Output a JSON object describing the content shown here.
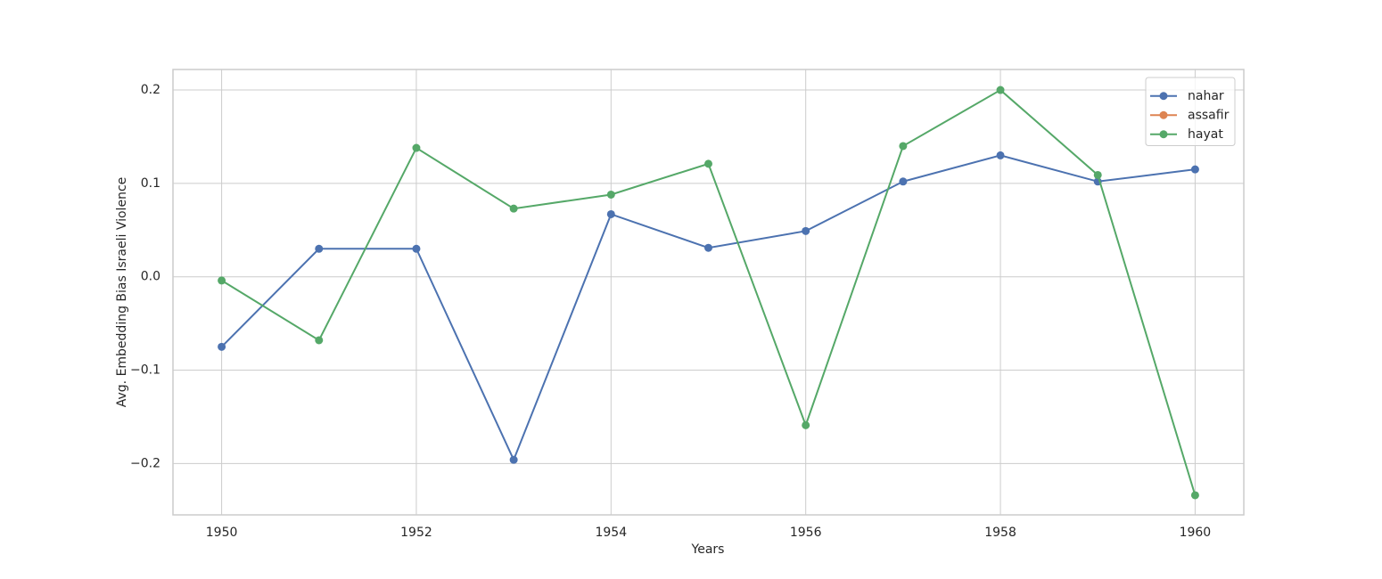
{
  "chart_data": {
    "type": "line",
    "x": [
      1950,
      1951,
      1952,
      1953,
      1954,
      1955,
      1956,
      1957,
      1958,
      1959,
      1960
    ],
    "series": [
      {
        "name": "nahar",
        "color": "#4c72b0",
        "values": [
          -0.075,
          0.03,
          0.03,
          -0.196,
          0.067,
          0.031,
          0.049,
          0.102,
          0.13,
          0.102,
          0.115
        ]
      },
      {
        "name": "assafir",
        "color": "#dd8452",
        "values": [
          null,
          null,
          null,
          null,
          null,
          null,
          null,
          null,
          null,
          null,
          null
        ]
      },
      {
        "name": "hayat",
        "color": "#55a868",
        "values": [
          -0.004,
          -0.068,
          0.138,
          0.073,
          0.088,
          0.121,
          -0.159,
          0.14,
          0.2,
          0.109,
          -0.234
        ]
      }
    ],
    "xlabel": "Years",
    "ylabel": "Avg. Embedding Bias Israeli Violence",
    "xlim": [
      1949.5,
      1960.5
    ],
    "xticks": [
      1950,
      1952,
      1954,
      1956,
      1958,
      1960
    ],
    "ylim": [
      -0.255,
      0.222
    ],
    "yticks": [
      {
        "value": -0.2,
        "label": "−0.2"
      },
      {
        "value": -0.1,
        "label": "−0.1"
      },
      {
        "value": 0,
        "label": "0.0"
      },
      0.1,
      0.2
    ],
    "grid": true,
    "legend": "upper right"
  }
}
